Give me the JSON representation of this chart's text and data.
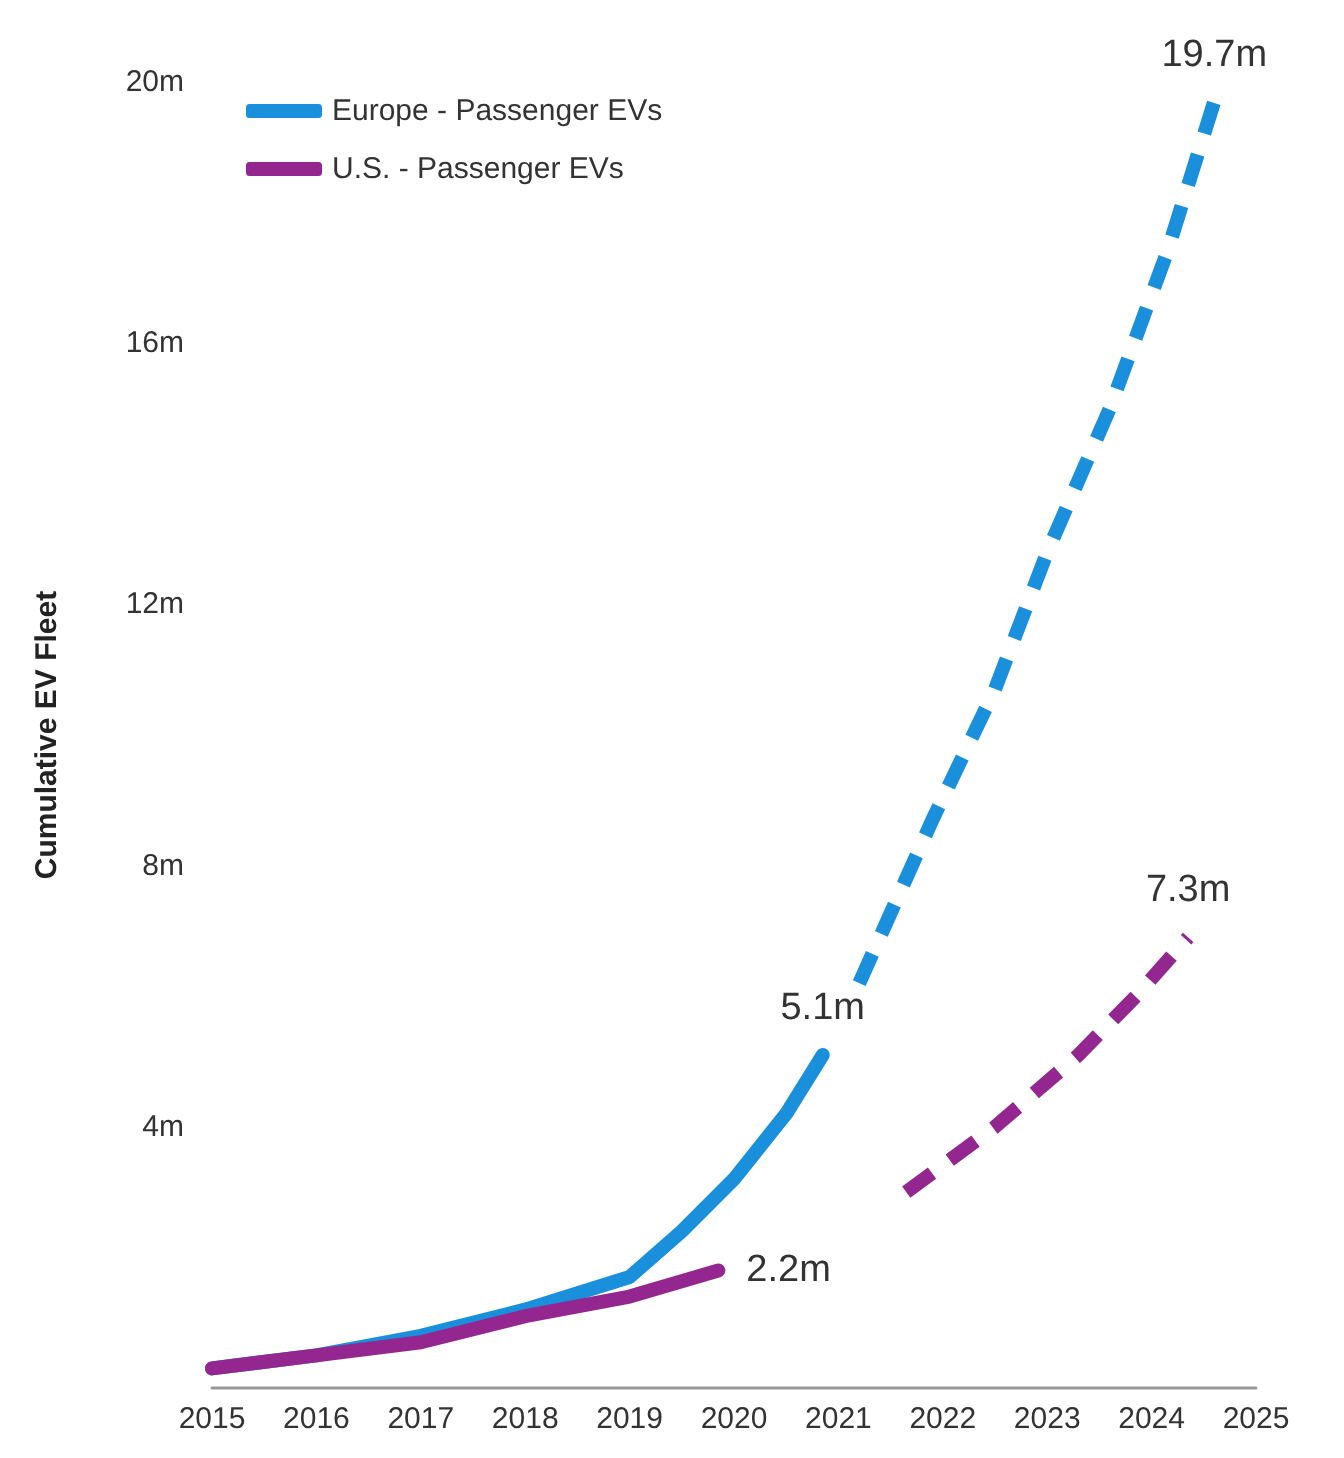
{
  "chart_data": {
    "type": "line",
    "ylabel": "Cumulative EV Fleet",
    "xlim": [
      2015,
      2025
    ],
    "xticks": [
      2015,
      2016,
      2017,
      2018,
      2019,
      2020,
      2021,
      2022,
      2023,
      2024,
      2025
    ],
    "ylim": [
      0,
      20
    ],
    "yticks": [
      {
        "value": 4,
        "label": "4m"
      },
      {
        "value": 8,
        "label": "8m"
      },
      {
        "value": 12,
        "label": "12m"
      },
      {
        "value": 16,
        "label": "16m"
      },
      {
        "value": 20,
        "label": "20m"
      }
    ],
    "grid": false,
    "legend": "top left",
    "marker": "none",
    "series": [
      {
        "name": "Europe - Passenger EVs",
        "color": "#1a8fdc",
        "line_style": "solid",
        "x": [
          2015,
          2016,
          2017,
          2018,
          2019,
          2019.5,
          2020,
          2020.5,
          2020.85
        ],
        "values": [
          0.3,
          0.5,
          0.8,
          1.2,
          1.7,
          2.4,
          3.2,
          4.2,
          5.1
        ]
      },
      {
        "name": "U.S. - Passenger EVs",
        "color": "#94278f",
        "line_style": "solid",
        "x": [
          2015,
          2016,
          2017,
          2018,
          2019,
          2019.85
        ],
        "values": [
          0.3,
          0.5,
          0.7,
          1.1,
          1.4,
          1.8
        ]
      },
      {
        "color": "#1a8fdc",
        "line_style": "dashed",
        "x": [
          2021.2,
          2021.9,
          2022.5,
          2023,
          2023.6,
          2024.15,
          2024.6
        ],
        "values": [
          6.2,
          8.7,
          10.7,
          12.8,
          15,
          17.4,
          19.7
        ]
      },
      {
        "color": "#94278f",
        "line_style": "dashed",
        "x": [
          2021.65,
          2022.5,
          2023.3,
          2023.85,
          2024.35
        ],
        "values": [
          3,
          4,
          5.1,
          6,
          6.9
        ]
      }
    ],
    "annotations": [
      {
        "text": "19.7m",
        "x": 2024.6,
        "y": 19.7
      },
      {
        "text": "5.1m",
        "x": 2020.85,
        "y": 5.1
      },
      {
        "text": "2.2m",
        "x": 2019.85,
        "y": 1.8
      },
      {
        "text": "7.3m",
        "x": 2024.35,
        "y": 6.9
      }
    ]
  }
}
